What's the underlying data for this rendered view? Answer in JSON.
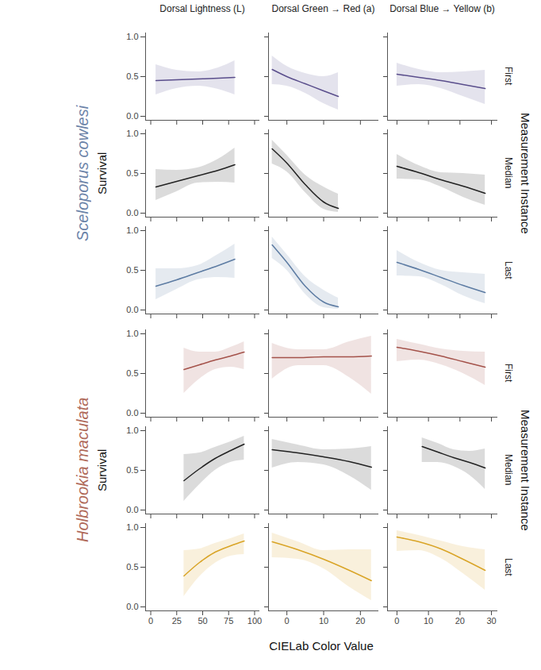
{
  "chart_data": {
    "type": "line",
    "x_label": "CIELab Color Value",
    "ylim": [
      -0.05,
      1.05
    ],
    "yticks": [
      {
        "value": 0,
        "label": "0.0"
      },
      {
        "value": 0.5,
        "label": "0.5"
      },
      {
        "value": 1,
        "label": "1.0"
      }
    ],
    "columns": [
      {
        "title": "Dorsal Lightness (L)",
        "xlim": [
          -5,
          105
        ],
        "xticks": [
          0,
          25,
          50,
          75,
          100
        ]
      },
      {
        "title": "Dorsal Green → Red (a)",
        "xlim": [
          -5,
          25
        ],
        "xticks": [
          0,
          10,
          20
        ]
      },
      {
        "title": "Dorsal Blue → Yellow (b)",
        "xlim": [
          -3,
          32
        ],
        "xticks": [
          0,
          10,
          20,
          30
        ]
      }
    ],
    "groups": [
      {
        "name": "Sceloporus cowlesi",
        "color": "#6b83a8",
        "y_label": "Survival",
        "row_title": "Measurement Instance",
        "rows": [
          {
            "name": "First",
            "color": "#5a4e8c",
            "panels": [
              {
                "x": [
                  5,
                  25,
                  45,
                  65,
                  81
                ],
                "values": [
                  0.45,
                  0.46,
                  0.47,
                  0.48,
                  0.49
                ],
                "lower": [
                  0.27,
                  0.35,
                  0.38,
                  0.34,
                  0.27
                ],
                "upper": [
                  0.65,
                  0.58,
                  0.56,
                  0.61,
                  0.7
                ]
              },
              {
                "x": [
                  -4,
                  0,
                  5,
                  10,
                  14
                ],
                "values": [
                  0.59,
                  0.5,
                  0.41,
                  0.32,
                  0.25
                ],
                "lower": [
                  0.4,
                  0.38,
                  0.29,
                  0.16,
                  0.08
                ],
                "upper": [
                  0.76,
                  0.63,
                  0.54,
                  0.5,
                  0.55
                ]
              },
              {
                "x": [
                  0,
                  7,
                  14,
                  21,
                  28
                ],
                "values": [
                  0.53,
                  0.49,
                  0.45,
                  0.4,
                  0.35
                ],
                "lower": [
                  0.38,
                  0.4,
                  0.35,
                  0.25,
                  0.15
                ],
                "upper": [
                  0.67,
                  0.59,
                  0.55,
                  0.56,
                  0.58
                ]
              }
            ]
          },
          {
            "name": "Median",
            "color": "#222222",
            "panels": [
              {
                "x": [
                  5,
                  25,
                  45,
                  65,
                  81
                ],
                "values": [
                  0.33,
                  0.4,
                  0.47,
                  0.54,
                  0.61
                ],
                "lower": [
                  0.16,
                  0.27,
                  0.38,
                  0.39,
                  0.38
                ],
                "upper": [
                  0.55,
                  0.54,
                  0.57,
                  0.68,
                  0.82
                ]
              },
              {
                "x": [
                  -4,
                  0,
                  5,
                  10,
                  14
                ],
                "values": [
                  0.81,
                  0.63,
                  0.36,
                  0.14,
                  0.06
                ],
                "lower": [
                  0.62,
                  0.52,
                  0.26,
                  0.05,
                  0.01
                ],
                "upper": [
                  0.92,
                  0.73,
                  0.48,
                  0.33,
                  0.24
                ]
              },
              {
                "x": [
                  0,
                  7,
                  14,
                  21,
                  28
                ],
                "values": [
                  0.59,
                  0.51,
                  0.42,
                  0.34,
                  0.25
                ],
                "lower": [
                  0.43,
                  0.42,
                  0.33,
                  0.2,
                  0.1
                ],
                "upper": [
                  0.74,
                  0.6,
                  0.51,
                  0.5,
                  0.48
                ]
              }
            ]
          },
          {
            "name": "Last",
            "color": "#5d7ca3",
            "panels": [
              {
                "x": [
                  5,
                  25,
                  45,
                  65,
                  81
                ],
                "values": [
                  0.3,
                  0.38,
                  0.47,
                  0.56,
                  0.64
                ],
                "lower": [
                  0.13,
                  0.26,
                  0.38,
                  0.41,
                  0.4
                ],
                "upper": [
                  0.52,
                  0.52,
                  0.56,
                  0.7,
                  0.83
                ]
              },
              {
                "x": [
                  -4,
                  0,
                  5,
                  10,
                  14
                ],
                "values": [
                  0.82,
                  0.6,
                  0.3,
                  0.1,
                  0.04
                ],
                "lower": [
                  0.65,
                  0.5,
                  0.2,
                  0.03,
                  0.01
                ],
                "upper": [
                  0.92,
                  0.7,
                  0.42,
                  0.25,
                  0.15
                ]
              },
              {
                "x": [
                  0,
                  7,
                  14,
                  21,
                  28
                ],
                "values": [
                  0.6,
                  0.51,
                  0.41,
                  0.31,
                  0.22
                ],
                "lower": [
                  0.43,
                  0.42,
                  0.32,
                  0.18,
                  0.08
                ],
                "upper": [
                  0.75,
                  0.6,
                  0.5,
                  0.47,
                  0.45
                ]
              }
            ]
          }
        ]
      },
      {
        "name": "Holbrookia maculata",
        "color": "#b06a5a",
        "y_label": "Survival",
        "row_title": "Measurement Instance",
        "rows": [
          {
            "name": "First",
            "color": "#a4524a",
            "panels": [
              {
                "x": [
                  32,
                  47,
                  62,
                  77,
                  90
                ],
                "values": [
                  0.55,
                  0.61,
                  0.67,
                  0.72,
                  0.77
                ],
                "lower": [
                  0.25,
                  0.43,
                  0.55,
                  0.58,
                  0.55
                ],
                "upper": [
                  0.82,
                  0.77,
                  0.77,
                  0.83,
                  0.9
                ]
              },
              {
                "x": [
                  -4,
                  3,
                  10,
                  17,
                  23
                ],
                "values": [
                  0.7,
                  0.7,
                  0.71,
                  0.71,
                  0.72
                ],
                "lower": [
                  0.43,
                  0.6,
                  0.6,
                  0.45,
                  0.24
                ],
                "upper": [
                  0.88,
                  0.8,
                  0.8,
                  0.9,
                  0.97
                ]
              },
              {
                "x": [
                  0,
                  7,
                  14,
                  21,
                  28
                ],
                "values": [
                  0.83,
                  0.78,
                  0.72,
                  0.65,
                  0.58
                ],
                "lower": [
                  0.65,
                  0.67,
                  0.61,
                  0.5,
                  0.35
                ],
                "upper": [
                  0.93,
                  0.87,
                  0.81,
                  0.78,
                  0.77
                ]
              }
            ]
          },
          {
            "name": "Median",
            "color": "#222222",
            "panels": [
              {
                "x": [
                  32,
                  47,
                  62,
                  77,
                  90
                ],
                "values": [
                  0.37,
                  0.52,
                  0.65,
                  0.75,
                  0.83
                ],
                "lower": [
                  0.11,
                  0.32,
                  0.5,
                  0.6,
                  0.63
                ],
                "upper": [
                  0.7,
                  0.72,
                  0.79,
                  0.86,
                  0.93
                ]
              },
              {
                "x": [
                  -4,
                  3,
                  10,
                  17,
                  23
                ],
                "values": [
                  0.76,
                  0.72,
                  0.67,
                  0.61,
                  0.54
                ],
                "lower": [
                  0.53,
                  0.6,
                  0.57,
                  0.43,
                  0.25
                ],
                "upper": [
                  0.89,
                  0.82,
                  0.76,
                  0.77,
                  0.8
                ]
              },
              {
                "x": [
                  8,
                  13,
                  18,
                  23,
                  28
                ],
                "values": [
                  0.8,
                  0.73,
                  0.66,
                  0.6,
                  0.53
                ],
                "lower": [
                  0.6,
                  0.6,
                  0.55,
                  0.44,
                  0.26
                ],
                "upper": [
                  0.91,
                  0.84,
                  0.76,
                  0.74,
                  0.77
                ]
              }
            ]
          },
          {
            "name": "Last",
            "color": "#d9a426",
            "panels": [
              {
                "x": [
                  32,
                  47,
                  62,
                  77,
                  90
                ],
                "values": [
                  0.39,
                  0.56,
                  0.69,
                  0.77,
                  0.83
                ],
                "lower": [
                  0.13,
                  0.38,
                  0.55,
                  0.64,
                  0.66
                ],
                "upper": [
                  0.71,
                  0.73,
                  0.8,
                  0.86,
                  0.92
                ]
              },
              {
                "x": [
                  -4,
                  3,
                  10,
                  17,
                  23
                ],
                "values": [
                  0.82,
                  0.72,
                  0.6,
                  0.46,
                  0.33
                ],
                "lower": [
                  0.62,
                  0.6,
                  0.48,
                  0.25,
                  0.08
                ],
                "upper": [
                  0.93,
                  0.82,
                  0.71,
                  0.72,
                  0.72
                ]
              },
              {
                "x": [
                  0,
                  7,
                  14,
                  21,
                  28
                ],
                "values": [
                  0.88,
                  0.82,
                  0.73,
                  0.6,
                  0.46
                ],
                "lower": [
                  0.7,
                  0.71,
                  0.61,
                  0.42,
                  0.21
                ],
                "upper": [
                  0.96,
                  0.9,
                  0.83,
                  0.76,
                  0.72
                ]
              }
            ]
          }
        ]
      }
    ]
  }
}
